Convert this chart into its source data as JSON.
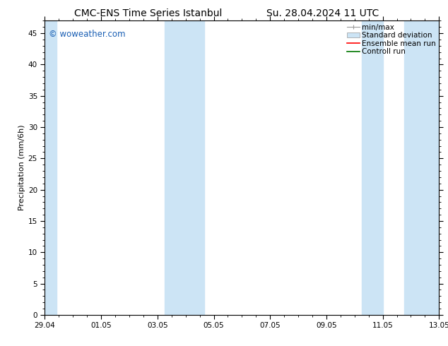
{
  "title_left": "CMC-ENS Time Series Istanbul",
  "title_right": "Su. 28.04.2024 11 UTC",
  "ylabel": "Precipitation (mm/6h)",
  "watermark": "© woweather.com",
  "watermark_color": "#1a5fb4",
  "xlim_start": 0,
  "xlim_end": 14,
  "ylim_min": 0,
  "ylim_max": 47,
  "yticks": [
    0,
    5,
    10,
    15,
    20,
    25,
    30,
    35,
    40,
    45
  ],
  "xtick_labels": [
    "29.04",
    "01.05",
    "03.05",
    "05.05",
    "07.05",
    "09.05",
    "11.05",
    "13.05"
  ],
  "xtick_positions": [
    0,
    2,
    4,
    6,
    8,
    10,
    12,
    14
  ],
  "shaded_regions": [
    {
      "xmin": 0.0,
      "xmax": 0.42,
      "color": "#cce4f5"
    },
    {
      "xmin": 4.25,
      "xmax": 5.65,
      "color": "#cce4f5"
    },
    {
      "xmin": 11.25,
      "xmax": 12.0,
      "color": "#cce4f5"
    },
    {
      "xmin": 12.75,
      "xmax": 14.0,
      "color": "#cce4f5"
    }
  ],
  "background_color": "#ffffff",
  "plot_bg_color": "#ffffff",
  "legend_labels": [
    "min/max",
    "Standard deviation",
    "Ensemble mean run",
    "Controll run"
  ],
  "legend_colors": [
    "#999999",
    "#cce4f5",
    "#ff0000",
    "#007700"
  ],
  "title_fontsize": 10,
  "axis_label_fontsize": 8,
  "tick_fontsize": 7.5,
  "legend_fontsize": 7.5,
  "watermark_fontsize": 8.5
}
